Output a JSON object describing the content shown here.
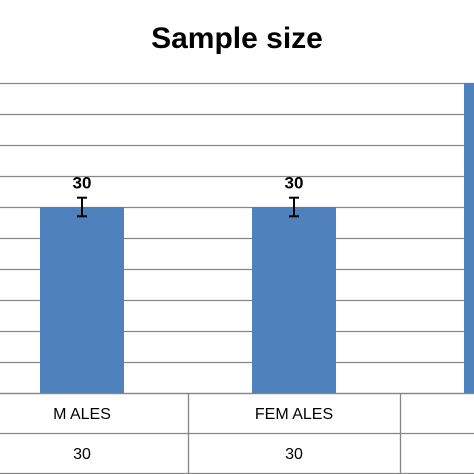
{
  "chart_data": {
    "type": "bar",
    "title": "Sample size",
    "categories": [
      "M ALES",
      "FEM ALES",
      ""
    ],
    "series": [
      {
        "values": [
          30,
          30,
          50
        ]
      }
    ],
    "data_labels": [
      "30",
      "30",
      ""
    ],
    "error_bar": 1.5,
    "ylim": [
      0,
      50
    ],
    "grid": true,
    "data_table": {
      "rows": [
        [
          "30",
          "30",
          ""
        ]
      ]
    },
    "colors": {
      "bar": "#4f81bd",
      "grid": "#868686",
      "frame": "#868686",
      "text": "#000000"
    }
  }
}
